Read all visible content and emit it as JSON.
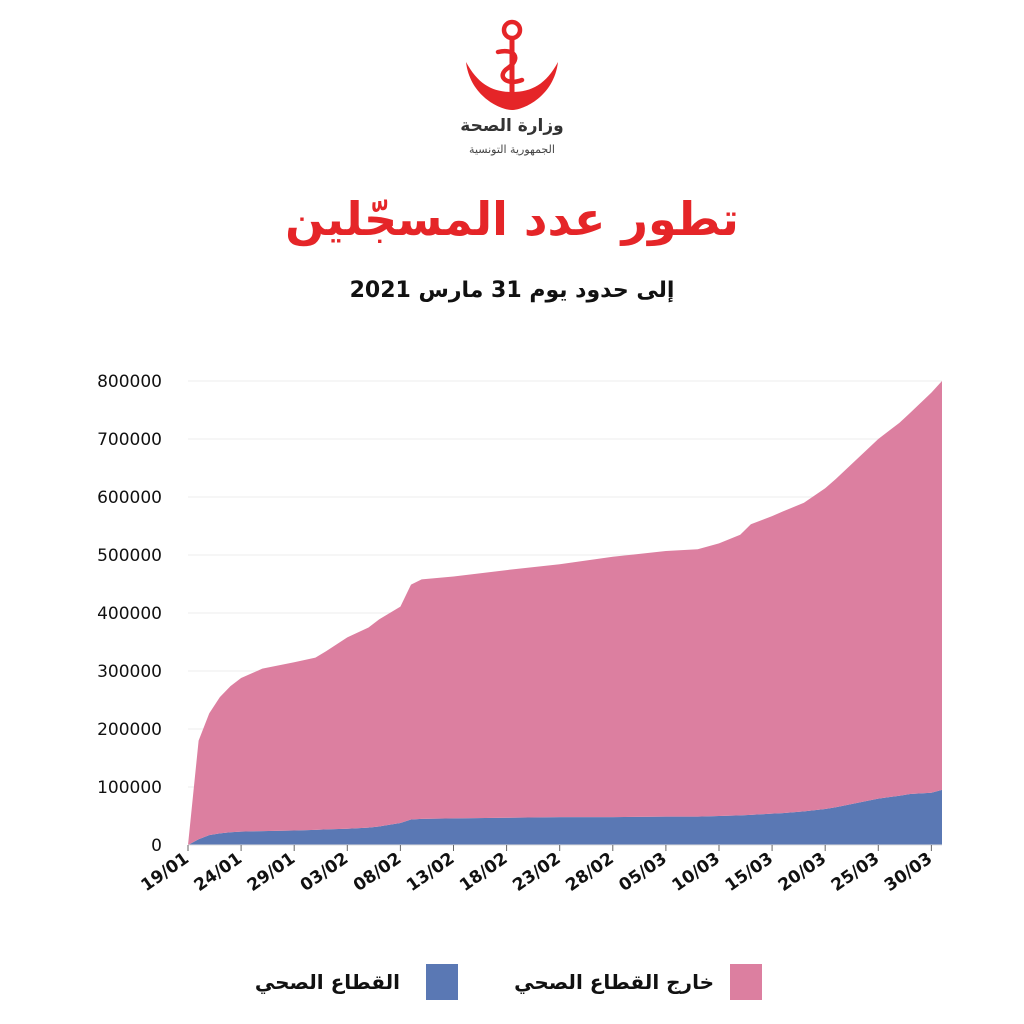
{
  "header": {
    "ministry_name": "وزارة الصحة",
    "ministry_country": "الجمهورية التونسية",
    "logo_icon": "crescent-anchor-icon",
    "logo_color": "#e52528"
  },
  "chart_data": {
    "type": "area",
    "title": "تطور عدد المسجّلين",
    "subtitle": "إلى حدود يوم 31 مارس 2021",
    "xlabel": "",
    "ylabel": "",
    "stacked": true,
    "ylim": [
      0,
      800000
    ],
    "yticks": [
      0,
      100000,
      200000,
      300000,
      400000,
      500000,
      600000,
      700000,
      800000
    ],
    "xticks": [
      "19/01",
      "24/01",
      "29/01",
      "03/02",
      "08/02",
      "13/02",
      "18/02",
      "23/02",
      "28/02",
      "05/03",
      "10/03",
      "15/03",
      "20/03",
      "25/03",
      "30/03"
    ],
    "grid": true,
    "legend_position": "bottom",
    "x": [
      "19/01",
      "20/01",
      "21/01",
      "22/01",
      "23/01",
      "24/01",
      "26/01",
      "29/01",
      "31/01",
      "01/02",
      "03/02",
      "05/02",
      "06/02",
      "08/02",
      "09/02",
      "10/02",
      "13/02",
      "18/02",
      "23/02",
      "28/02",
      "05/03",
      "08/03",
      "10/03",
      "12/03",
      "13/03",
      "15/03",
      "16/03",
      "18/03",
      "20/03",
      "21/03",
      "25/03",
      "27/03",
      "28/03",
      "30/03",
      "31/03"
    ],
    "series": [
      {
        "name": "القطاع الصحي",
        "color": "#5a78b4",
        "values": [
          0,
          10000,
          17000,
          20000,
          22000,
          23000,
          24000,
          25000,
          26000,
          27000,
          28000,
          30000,
          32000,
          38000,
          44000,
          45000,
          46000,
          47000,
          48000,
          48000,
          49000,
          49000,
          50000,
          51000,
          52000,
          54000,
          55000,
          58000,
          62000,
          65000,
          80000,
          85000,
          88000,
          90000,
          95000
        ]
      },
      {
        "name": "خارج القطاع الصحي",
        "color": "#dc7fa0",
        "values": [
          0,
          170000,
          210000,
          235000,
          252000,
          265000,
          280000,
          290000,
          297000,
          307000,
          330000,
          345000,
          357000,
          373000,
          405000,
          413000,
          417000,
          427000,
          436000,
          449000,
          458000,
          461000,
          470000,
          484000,
          501000,
          513000,
          520000,
          532000,
          553000,
          566000,
          620000,
          643000,
          657000,
          690000,
          705000
        ]
      }
    ]
  }
}
